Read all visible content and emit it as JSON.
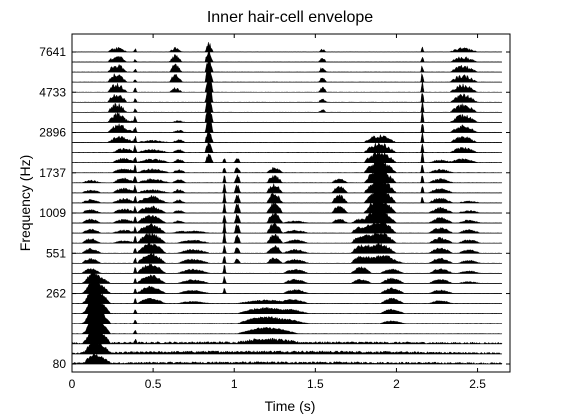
{
  "chart_data": {
    "type": "area",
    "title": "Inner hair-cell envelope",
    "xlabel": "Time (s)",
    "ylabel": "Frequency (Hz)",
    "xlim": [
      0,
      2.7
    ],
    "x_ticks": [
      0,
      0.5,
      1,
      1.5,
      2,
      2.5
    ],
    "x_tick_labels": [
      "0",
      "0.5",
      "1",
      "1.5",
      "2",
      "2.5"
    ],
    "y_tick_labels": [
      "7641",
      "4733",
      "2896",
      "1737",
      "1009",
      "551",
      "262",
      "80"
    ],
    "channel_count": 32,
    "signal_end_s": 2.65,
    "fill_color": "#000000",
    "grid": false,
    "legend": "none",
    "events": [
      {
        "t0": 0.08,
        "t1": 0.24,
        "lo": 0,
        "hi": 8,
        "amp": 1.0
      },
      {
        "t0": 0.06,
        "t1": 0.18,
        "lo": 0,
        "hi": 18,
        "amp": 0.35
      },
      {
        "t0": 0.22,
        "t1": 0.34,
        "lo": 22,
        "hi": 31,
        "amp": 0.7
      },
      {
        "t0": 0.25,
        "t1": 0.4,
        "lo": 12,
        "hi": 24,
        "amp": 0.35
      },
      {
        "t0": 0.38,
        "t1": 0.4,
        "lo": 2,
        "hi": 31,
        "amp": 0.5
      },
      {
        "t0": 0.4,
        "t1": 0.58,
        "lo": 6,
        "hi": 16,
        "amp": 0.75
      },
      {
        "t0": 0.4,
        "t1": 0.6,
        "lo": 16,
        "hi": 22,
        "amp": 0.3
      },
      {
        "t0": 0.6,
        "t1": 0.68,
        "lo": 27,
        "hi": 31,
        "amp": 0.65
      },
      {
        "t0": 0.62,
        "t1": 0.7,
        "lo": 13,
        "hi": 24,
        "amp": 0.25
      },
      {
        "t0": 0.82,
        "t1": 0.87,
        "lo": 20,
        "hi": 31,
        "amp": 1.4
      },
      {
        "t0": 0.65,
        "t1": 0.85,
        "lo": 6,
        "hi": 13,
        "amp": 0.3
      },
      {
        "t0": 0.93,
        "t1": 0.95,
        "lo": 7,
        "hi": 20,
        "amp": 0.8
      },
      {
        "t0": 1.0,
        "t1": 1.04,
        "lo": 10,
        "hi": 20,
        "amp": 0.7
      },
      {
        "t0": 1.02,
        "t1": 1.4,
        "lo": 2,
        "hi": 6,
        "amp": 0.5
      },
      {
        "t0": 1.2,
        "t1": 1.3,
        "lo": 10,
        "hi": 19,
        "amp": 0.8
      },
      {
        "t0": 1.3,
        "t1": 1.46,
        "lo": 4,
        "hi": 14,
        "amp": 0.3
      },
      {
        "t0": 1.52,
        "t1": 1.57,
        "lo": 25,
        "hi": 31,
        "amp": 0.4
      },
      {
        "t0": 1.6,
        "t1": 1.7,
        "lo": 14,
        "hi": 18,
        "amp": 0.6
      },
      {
        "t0": 1.72,
        "t1": 1.85,
        "lo": 8,
        "hi": 14,
        "amp": 0.6
      },
      {
        "t0": 1.8,
        "t1": 2.0,
        "lo": 10,
        "hi": 22,
        "amp": 1.1
      },
      {
        "t0": 1.9,
        "t1": 2.05,
        "lo": 4,
        "hi": 10,
        "amp": 0.4
      },
      {
        "t0": 2.15,
        "t1": 2.17,
        "lo": 16,
        "hi": 31,
        "amp": 0.9
      },
      {
        "t0": 2.2,
        "t1": 2.35,
        "lo": 6,
        "hi": 20,
        "amp": 0.4
      },
      {
        "t0": 2.33,
        "t1": 2.5,
        "lo": 20,
        "hi": 31,
        "amp": 0.6
      },
      {
        "t0": 2.38,
        "t1": 2.52,
        "lo": 8,
        "hi": 16,
        "amp": 0.25
      },
      {
        "t0": 0.0,
        "t1": 2.6,
        "lo": 0,
        "hi": 2,
        "amp": 0.12
      }
    ]
  }
}
